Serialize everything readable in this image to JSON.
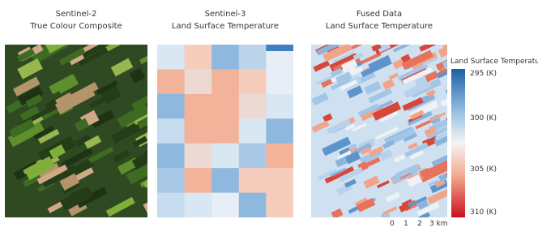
{
  "panels": [
    {
      "title": "Sentinel-2",
      "subtitle": "True Colour Composite"
    },
    {
      "title": "Sentinel-3",
      "subtitle": "Land Surface Temperature"
    },
    {
      "title": "Fused Data",
      "subtitle": "Land Surface Temperature"
    }
  ],
  "legend": {
    "title": "Land Surface Temperature",
    "ticks": [
      "295 (K)",
      "300 (K)",
      "305 (K)",
      "310 (K)"
    ]
  },
  "scale_bar": {
    "labels": [
      "0",
      "1",
      "2",
      "3 km"
    ]
  }
}
